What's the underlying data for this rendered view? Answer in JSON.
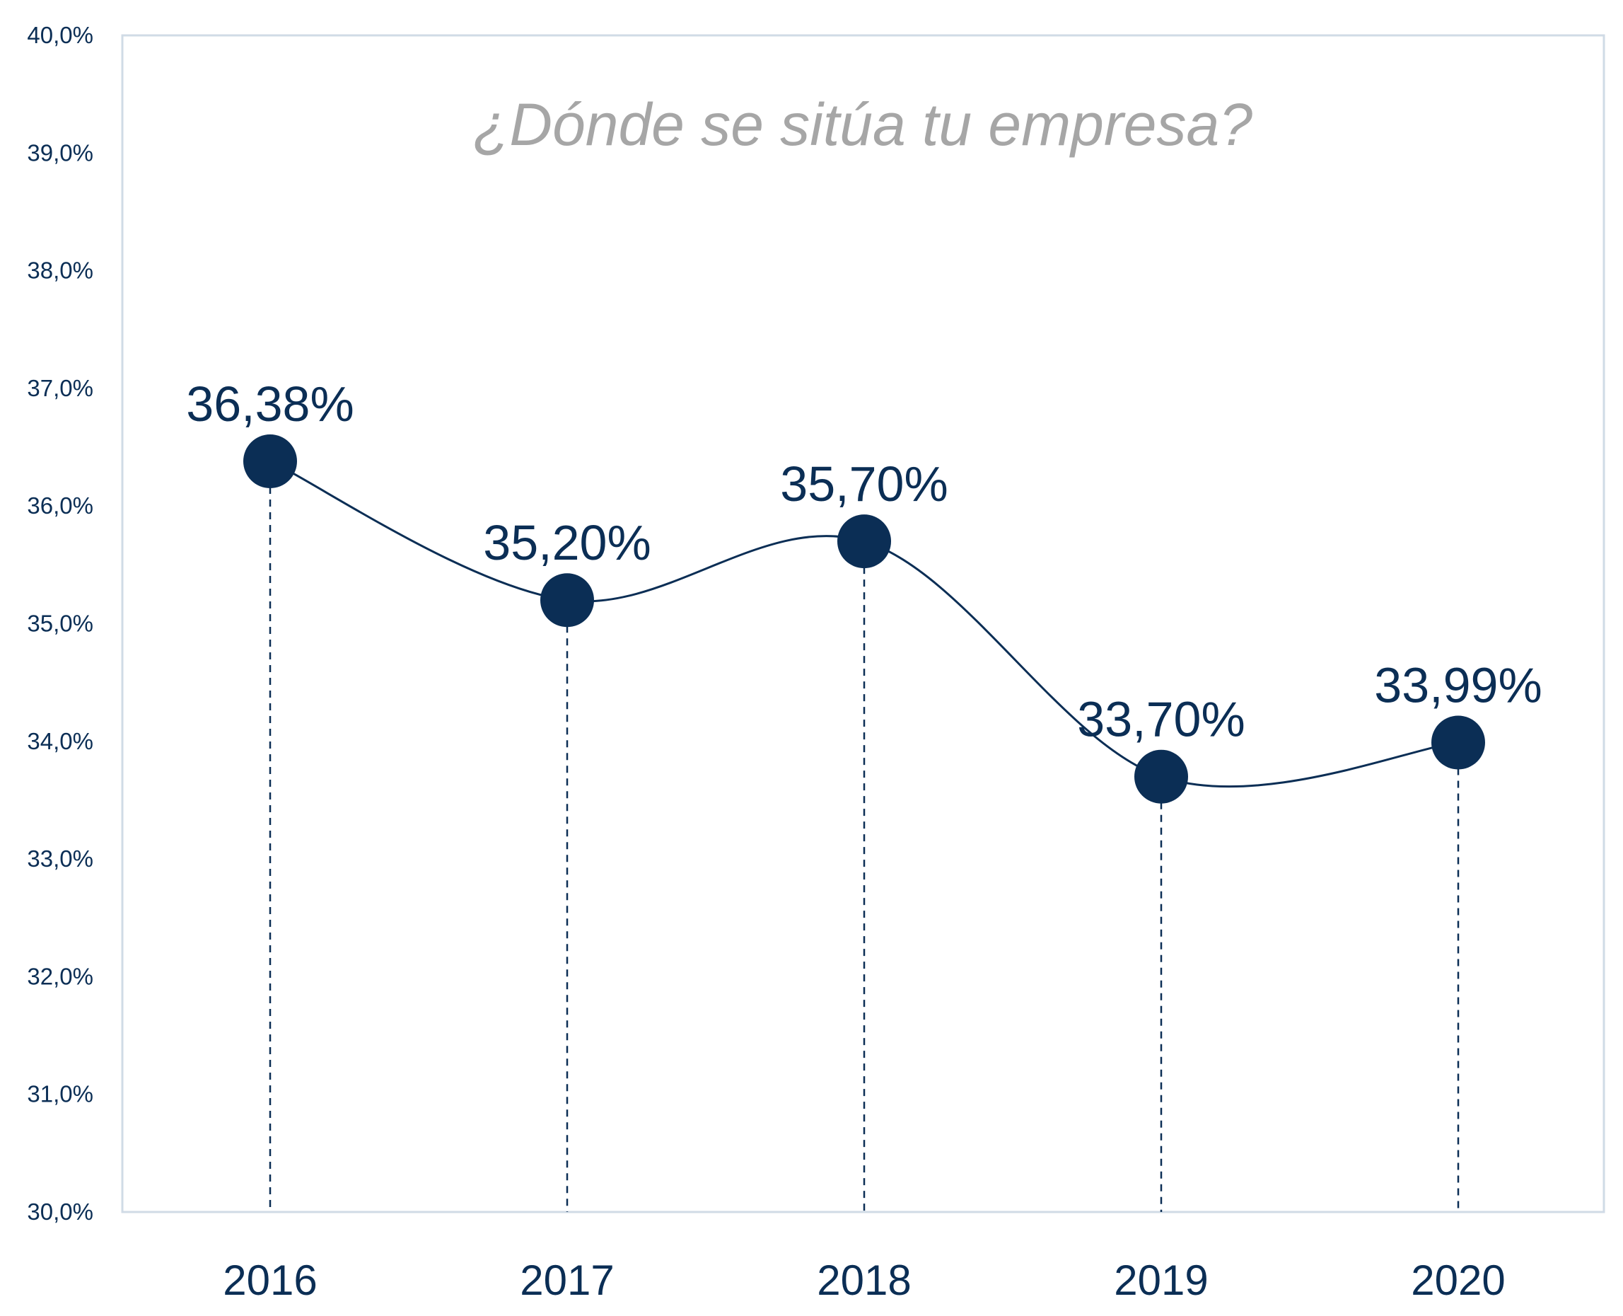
{
  "chart_data": {
    "type": "line",
    "title": "¿Dónde se sitúa tu empresa?",
    "categories": [
      "2016",
      "2017",
      "2018",
      "2019",
      "2020"
    ],
    "values": [
      36.38,
      35.2,
      35.7,
      33.7,
      33.99
    ],
    "data_labels": [
      "36,38%",
      "35,20%",
      "35,70%",
      "33,70%",
      "33,99%"
    ],
    "ylim": [
      30,
      40
    ],
    "y_ticks": [
      30,
      31,
      32,
      33,
      34,
      35,
      36,
      37,
      38,
      39,
      40
    ],
    "y_tick_labels": [
      "30,0%",
      "31,0%",
      "32,0%",
      "33,0%",
      "34,0%",
      "35,0%",
      "36,0%",
      "37,0%",
      "38,0%",
      "39,0%",
      "40,0%"
    ],
    "xlabel": "",
    "ylabel": "",
    "smooth_line": true,
    "drop_lines": "dashed",
    "grid": false,
    "legend": "none",
    "colors": {
      "series": "#0b2e55",
      "title": "#a6a6a6",
      "frame": "#d0dbe6"
    }
  }
}
